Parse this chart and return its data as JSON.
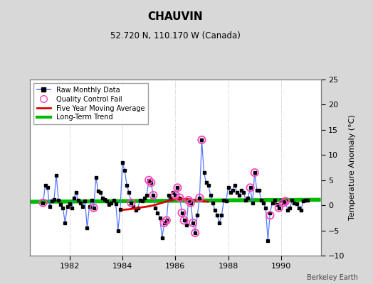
{
  "title": "CHAUVIN",
  "subtitle": "52.720 N, 110.170 W (Canada)",
  "watermark": "Berkeley Earth",
  "ylabel": "Temperature Anomaly (°C)",
  "ylim": [
    -10,
    25
  ],
  "yticks": [
    -10,
    -5,
    0,
    5,
    10,
    15,
    20,
    25
  ],
  "xlim": [
    1980.5,
    1991.5
  ],
  "xticks": [
    1982,
    1984,
    1986,
    1988,
    1990
  ],
  "bg_color": "#d8d8d8",
  "plot_bg": "#ffffff",
  "grid_color": "#bbbbbb",
  "raw_x": [
    1981.0,
    1981.083,
    1981.167,
    1981.25,
    1981.333,
    1981.417,
    1981.5,
    1981.583,
    1981.667,
    1981.75,
    1981.833,
    1981.917,
    1982.0,
    1982.083,
    1982.167,
    1982.25,
    1982.333,
    1982.417,
    1982.5,
    1982.583,
    1982.667,
    1982.75,
    1982.833,
    1982.917,
    1983.0,
    1983.083,
    1983.167,
    1983.25,
    1983.333,
    1983.417,
    1983.5,
    1983.583,
    1983.667,
    1983.75,
    1983.833,
    1983.917,
    1984.0,
    1984.083,
    1984.167,
    1984.25,
    1984.333,
    1984.417,
    1984.5,
    1984.583,
    1984.667,
    1984.75,
    1984.833,
    1984.917,
    1985.0,
    1985.083,
    1985.167,
    1985.25,
    1985.333,
    1985.417,
    1985.5,
    1985.583,
    1985.667,
    1985.75,
    1985.833,
    1985.917,
    1986.0,
    1986.083,
    1986.167,
    1986.25,
    1986.333,
    1986.417,
    1986.5,
    1986.583,
    1986.667,
    1986.75,
    1986.833,
    1986.917,
    1987.0,
    1987.083,
    1987.167,
    1987.25,
    1987.333,
    1987.417,
    1987.5,
    1987.583,
    1987.667,
    1987.75,
    1987.833,
    1987.917,
    1988.0,
    1988.083,
    1988.167,
    1988.25,
    1988.333,
    1988.417,
    1988.5,
    1988.583,
    1988.667,
    1988.75,
    1988.833,
    1988.917,
    1989.0,
    1989.083,
    1989.167,
    1989.25,
    1989.333,
    1989.417,
    1989.5,
    1989.583,
    1989.667,
    1989.75,
    1989.833,
    1989.917,
    1990.0,
    1990.083,
    1990.167,
    1990.25,
    1990.333,
    1990.417,
    1990.5,
    1990.583,
    1990.667,
    1990.75,
    1990.833,
    1990.917,
    1991.0
  ],
  "raw_y": [
    0.5,
    4.0,
    3.5,
    -0.3,
    0.8,
    1.2,
    6.0,
    1.0,
    0.2,
    -0.5,
    -3.5,
    -0.2,
    0.3,
    -0.5,
    1.5,
    2.5,
    1.0,
    0.5,
    -0.3,
    0.8,
    -4.5,
    -0.3,
    1.0,
    -0.5,
    5.5,
    2.8,
    2.5,
    1.5,
    1.2,
    0.8,
    0.2,
    0.5,
    1.0,
    0.3,
    -5.0,
    -0.8,
    8.5,
    7.0,
    4.0,
    2.5,
    0.5,
    -0.3,
    -1.0,
    -0.5,
    1.0,
    0.8,
    1.5,
    2.0,
    5.0,
    4.5,
    2.0,
    -0.5,
    -1.5,
    -2.5,
    -6.5,
    -3.5,
    -3.0,
    2.0,
    1.5,
    2.5,
    2.0,
    3.5,
    1.5,
    -1.5,
    -3.0,
    -4.0,
    1.0,
    0.5,
    -3.5,
    -5.5,
    -2.0,
    1.5,
    13.0,
    6.5,
    4.5,
    4.0,
    2.0,
    0.5,
    -1.0,
    -2.0,
    -3.5,
    -2.0,
    1.0,
    0.8,
    3.5,
    2.5,
    3.0,
    4.0,
    2.5,
    2.0,
    3.0,
    2.5,
    1.0,
    1.5,
    3.5,
    0.5,
    6.5,
    3.0,
    3.0,
    1.0,
    0.5,
    -0.5,
    -7.0,
    -1.5,
    0.5,
    1.0,
    0.2,
    -0.5,
    1.0,
    0.5,
    0.8,
    -1.0,
    -0.5,
    1.0,
    0.5,
    0.3,
    -0.5,
    -1.0,
    0.8,
    1.0,
    1.0
  ],
  "qc_fail_x": [
    1981.0,
    1982.917,
    1984.333,
    1985.0,
    1985.083,
    1985.167,
    1985.583,
    1985.667,
    1986.0,
    1986.083,
    1986.167,
    1986.25,
    1986.333,
    1986.5,
    1986.583,
    1986.667,
    1986.75,
    1986.917,
    1987.0,
    1988.833,
    1989.0,
    1989.583,
    1989.917,
    1990.083,
    1990.167
  ],
  "qc_fail_y": [
    0.5,
    -0.5,
    0.5,
    5.0,
    4.5,
    2.0,
    -3.5,
    -3.0,
    2.0,
    3.5,
    1.5,
    -1.5,
    -3.0,
    1.0,
    0.5,
    -3.5,
    -5.5,
    1.5,
    13.0,
    3.5,
    6.5,
    -2.0,
    -0.5,
    0.5,
    0.8
  ],
  "ma_x": [
    1984.0,
    1984.25,
    1984.5,
    1984.75,
    1985.0,
    1985.25,
    1985.5,
    1985.75,
    1986.0,
    1986.25,
    1986.5,
    1986.75,
    1987.0,
    1987.25
  ],
  "ma_y": [
    -0.9,
    -0.8,
    -0.6,
    -0.4,
    -0.2,
    0.1,
    0.5,
    0.9,
    1.2,
    1.3,
    1.2,
    1.0,
    0.8,
    0.7
  ],
  "trend_x": [
    1980.5,
    1991.5
  ],
  "trend_y": [
    0.7,
    1.1
  ]
}
